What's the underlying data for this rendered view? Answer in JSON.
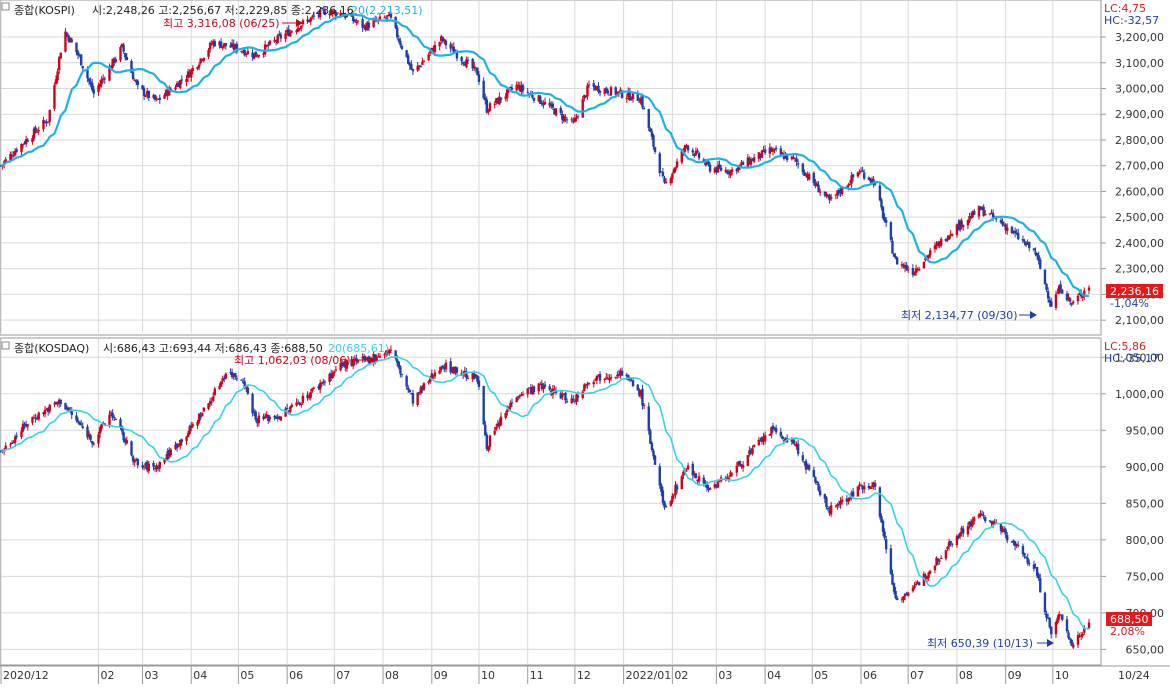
{
  "colors": {
    "up": "#d0021b",
    "down": "#1f3fa8",
    "ma_kospi": "#1fb0e6",
    "ma_kosdaq": "#34d3e8",
    "grid": "#d9d9d9",
    "axis_text": "#333333",
    "price_box": "#e5191c",
    "legend_pos": "#e5191c",
    "legend_neg": "#1f3fa8"
  },
  "chart_data": [
    {
      "type": "candlestick",
      "name": "KOSPI",
      "header": {
        "title": "종합(KOSPI)",
        "ohlc_text": "시:2,248,26 고:2,256,67 저:2,229,85 종:2,236,16",
        "ma_text": "20(2,213,51)"
      },
      "lc_text": "LC:4,75",
      "hc_text": "HC:-32,57",
      "current_price_text": "2,236,16",
      "change_pct_text": "-1,04%",
      "max_annotation": {
        "text": "최고 3,316,08 (06/25)",
        "value": 3316.08,
        "date": "06/25"
      },
      "min_annotation": {
        "text": "최저 2,134,77 (09/30)",
        "value": 2134.77,
        "date": "09/30"
      },
      "ylim": [
        2050,
        3340
      ],
      "y_ticks": [
        2100,
        2200,
        2300,
        2400,
        2500,
        2600,
        2700,
        2800,
        2900,
        3000,
        3100,
        3200
      ],
      "y_tick_labels": [
        "2,100,00",
        "2,200,00",
        "2,300,00",
        "2,400,00",
        "2,500,00",
        "2,600,00",
        "2,700,00",
        "2,800,00",
        "2,900,00",
        "3,000,00",
        "3,100,00",
        "3,200,00"
      ],
      "start_date": "2020-12-01",
      "close_path": [
        [
          "2020-12-01",
          2700
        ],
        [
          "2020-12-10",
          2760
        ],
        [
          "2020-12-31",
          2880
        ],
        [
          "2021-01-08",
          3150
        ],
        [
          "2021-01-11",
          3220
        ],
        [
          "2021-01-20",
          3120
        ],
        [
          "2021-01-29",
          2980
        ],
        [
          "2021-02-10",
          3100
        ],
        [
          "2021-02-16",
          3160
        ],
        [
          "2021-02-26",
          3000
        ],
        [
          "2021-03-10",
          2950
        ],
        [
          "2021-03-31",
          3060
        ],
        [
          "2021-04-15",
          3180
        ],
        [
          "2021-05-03",
          3150
        ],
        [
          "2021-05-12",
          3130
        ],
        [
          "2021-05-28",
          3200
        ],
        [
          "2021-06-10",
          3250
        ],
        [
          "2021-06-25",
          3300
        ],
        [
          "2021-07-06",
          3290
        ],
        [
          "2021-07-20",
          3240
        ],
        [
          "2021-08-05",
          3280
        ],
        [
          "2021-08-20",
          3060
        ],
        [
          "2021-09-07",
          3190
        ],
        [
          "2021-09-30",
          3060
        ],
        [
          "2021-10-06",
          2920
        ],
        [
          "2021-10-25",
          3010
        ],
        [
          "2021-11-10",
          2950
        ],
        [
          "2021-11-30",
          2860
        ],
        [
          "2021-12-10",
          3010
        ],
        [
          "2021-12-30",
          2980
        ],
        [
          "2022-01-12",
          2960
        ],
        [
          "2022-01-27",
          2620
        ],
        [
          "2022-02-10",
          2780
        ],
        [
          "2022-02-25",
          2690
        ],
        [
          "2022-03-10",
          2680
        ],
        [
          "2022-04-04",
          2760
        ],
        [
          "2022-04-20",
          2720
        ],
        [
          "2022-05-12",
          2560
        ],
        [
          "2022-05-31",
          2680
        ],
        [
          "2022-06-09",
          2640
        ],
        [
          "2022-06-23",
          2330
        ],
        [
          "2022-07-04",
          2290
        ],
        [
          "2022-07-29",
          2450
        ],
        [
          "2022-08-16",
          2530
        ],
        [
          "2022-08-31",
          2470
        ],
        [
          "2022-09-20",
          2360
        ],
        [
          "2022-09-30",
          2160
        ],
        [
          "2022-10-06",
          2230
        ],
        [
          "2022-10-13",
          2160
        ],
        [
          "2022-10-24",
          2236
        ]
      ]
    },
    {
      "type": "candlestick",
      "name": "KOSDAQ",
      "header": {
        "title": "종합(KOSDAQ)",
        "ohlc_text": "시:686,43 고:693,44 저:686,43 종:688,50",
        "ma_text": "20(685,61)"
      },
      "lc_text": "LC:5,86",
      "hc_text": "HC:-35,17",
      "current_price_text": "688,50",
      "change_pct_text": "2,08%",
      "max_annotation": {
        "text": "최고 1,062,03 (08/06)",
        "value": 1062.03,
        "date": "08/06"
      },
      "min_annotation": {
        "text": "최저 650,39 (10/13)",
        "value": 650.39,
        "date": "10/13"
      },
      "ylim": [
        630,
        1075
      ],
      "y_ticks": [
        650,
        700,
        750,
        800,
        850,
        900,
        950,
        1000,
        1050
      ],
      "y_tick_labels": [
        "650,00",
        "700,00",
        "750,00",
        "800,00",
        "850,00",
        "900,00",
        "950,00",
        "1,000,00",
        "1,050,00"
      ],
      "start_date": "2020-12-01",
      "close_path": [
        [
          "2020-12-01",
          920
        ],
        [
          "2020-12-20",
          965
        ],
        [
          "2021-01-08",
          990
        ],
        [
          "2021-01-19",
          960
        ],
        [
          "2021-01-29",
          935
        ],
        [
          "2021-02-09",
          975
        ],
        [
          "2021-02-26",
          900
        ],
        [
          "2021-03-10",
          900
        ],
        [
          "2021-03-31",
          950
        ],
        [
          "2021-04-13",
          990
        ],
        [
          "2021-04-23",
          1030
        ],
        [
          "2021-05-04",
          1020
        ],
        [
          "2021-05-12",
          965
        ],
        [
          "2021-05-28",
          970
        ],
        [
          "2021-06-15",
          1000
        ],
        [
          "2021-07-06",
          1040
        ],
        [
          "2021-07-20",
          1045
        ],
        [
          "2021-08-06",
          1060
        ],
        [
          "2021-08-20",
          990
        ],
        [
          "2021-09-07",
          1040
        ],
        [
          "2021-09-30",
          1020
        ],
        [
          "2021-10-06",
          930
        ],
        [
          "2021-10-25",
          1000
        ],
        [
          "2021-11-10",
          1010
        ],
        [
          "2021-11-30",
          990
        ],
        [
          "2021-12-10",
          1020
        ],
        [
          "2021-12-30",
          1030
        ],
        [
          "2022-01-12",
          1000
        ],
        [
          "2022-01-27",
          840
        ],
        [
          "2022-02-10",
          900
        ],
        [
          "2022-02-25",
          870
        ],
        [
          "2022-03-10",
          890
        ],
        [
          "2022-04-05",
          950
        ],
        [
          "2022-04-20",
          930
        ],
        [
          "2022-05-12",
          840
        ],
        [
          "2022-05-31",
          870
        ],
        [
          "2022-06-09",
          880
        ],
        [
          "2022-06-23",
          720
        ],
        [
          "2022-07-04",
          730
        ],
        [
          "2022-07-29",
          800
        ],
        [
          "2022-08-16",
          835
        ],
        [
          "2022-08-31",
          810
        ],
        [
          "2022-09-20",
          760
        ],
        [
          "2022-09-30",
          670
        ],
        [
          "2022-10-06",
          700
        ],
        [
          "2022-10-13",
          655
        ],
        [
          "2022-10-24",
          688
        ]
      ]
    }
  ],
  "x_axis": {
    "start_date": "2020-12-01",
    "end_date": "2022-10-31",
    "ticks": [
      {
        "label": "2020/12",
        "date": "2020-12-01"
      },
      {
        "label": "02",
        "date": "2021-02-01"
      },
      {
        "label": "03",
        "date": "2021-03-01"
      },
      {
        "label": "04",
        "date": "2021-04-01"
      },
      {
        "label": "05",
        "date": "2021-05-01"
      },
      {
        "label": "06",
        "date": "2021-06-01"
      },
      {
        "label": "07",
        "date": "2021-07-01"
      },
      {
        "label": "08",
        "date": "2021-08-01"
      },
      {
        "label": "09",
        "date": "2021-09-01"
      },
      {
        "label": "10",
        "date": "2021-10-01"
      },
      {
        "label": "11",
        "date": "2021-11-01"
      },
      {
        "label": "12",
        "date": "2021-12-01"
      },
      {
        "label": "2022/01",
        "date": "2022-01-01"
      },
      {
        "label": "02",
        "date": "2022-02-01"
      },
      {
        "label": "03",
        "date": "2022-03-01"
      },
      {
        "label": "04",
        "date": "2022-04-01"
      },
      {
        "label": "05",
        "date": "2022-05-01"
      },
      {
        "label": "06",
        "date": "2022-06-01"
      },
      {
        "label": "07",
        "date": "2022-07-01"
      },
      {
        "label": "08",
        "date": "2022-08-01"
      },
      {
        "label": "09",
        "date": "2022-09-01"
      },
      {
        "label": "10",
        "date": "2022-10-01"
      }
    ],
    "right_label": "10/24"
  }
}
